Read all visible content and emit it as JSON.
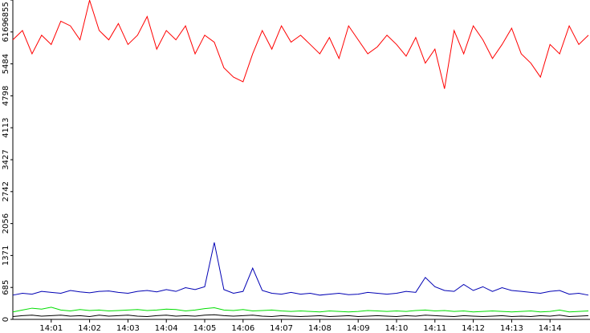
{
  "chart_data": {
    "type": "line",
    "x": [
      0,
      0.25,
      0.5,
      0.75,
      1,
      1.25,
      1.5,
      1.75,
      2,
      2.25,
      2.5,
      2.75,
      3,
      3.25,
      3.5,
      3.75,
      4,
      4.25,
      4.5,
      4.75,
      5,
      5.25,
      5.5,
      5.75,
      6,
      6.25,
      6.5,
      6.75,
      7,
      7.25,
      7.5,
      7.75,
      8,
      8.25,
      8.5,
      8.75,
      9,
      9.25,
      9.5,
      9.75,
      10,
      10.25,
      10.5,
      10.75,
      11,
      11.25,
      11.5,
      11.75,
      12,
      12.25,
      12.5,
      12.75,
      13,
      13.25,
      13.5,
      13.75,
      14,
      14.25,
      14.5,
      14.75,
      15
    ],
    "series": [
      {
        "color": "#ff0000",
        "values": [
          6000,
          6200,
          5700,
          6100,
          5900,
          6400,
          6300,
          6000,
          6850,
          6200,
          6000,
          6350,
          5900,
          6100,
          6500,
          5800,
          6200,
          6000,
          6300,
          5700,
          6100,
          5950,
          5400,
          5200,
          5100,
          5700,
          6200,
          5800,
          6300,
          5950,
          6100,
          5900,
          5700,
          6050,
          5600,
          6300,
          6000,
          5700,
          5850,
          6100,
          5900,
          5650,
          6050,
          5500,
          5800,
          4950,
          6200,
          5700,
          6300,
          6000,
          5600,
          5900,
          6250,
          5700,
          5500,
          5200,
          5900,
          5700,
          6300,
          5900,
          6100
        ]
      },
      {
        "color": "#0000b4",
        "values": [
          520,
          560,
          540,
          600,
          580,
          560,
          620,
          590,
          570,
          600,
          610,
          580,
          560,
          600,
          620,
          590,
          640,
          600,
          680,
          640,
          700,
          1650,
          640,
          560,
          600,
          1100,
          620,
          560,
          540,
          580,
          540,
          560,
          520,
          540,
          560,
          530,
          540,
          580,
          560,
          540,
          560,
          600,
          580,
          900,
          700,
          620,
          600,
          750,
          620,
          700,
          600,
          680,
          620,
          600,
          580,
          560,
          600,
          620,
          540,
          560,
          520
        ]
      },
      {
        "color": "#00dd00",
        "values": [
          160,
          200,
          240,
          220,
          260,
          200,
          180,
          210,
          190,
          200,
          180,
          190,
          200,
          210,
          190,
          200,
          220,
          210,
          180,
          200,
          230,
          250,
          200,
          190,
          210,
          180,
          190,
          200,
          180,
          170,
          180,
          170,
          160,
          180,
          170,
          160,
          170,
          190,
          180,
          170,
          180,
          170,
          190,
          200,
          180,
          190,
          170,
          180,
          160,
          170,
          180,
          170,
          160,
          170,
          180,
          160,
          170,
          200,
          160,
          170,
          180
        ]
      },
      {
        "color": "#000000",
        "values": [
          60,
          80,
          90,
          70,
          80,
          90,
          70,
          80,
          60,
          90,
          70,
          80,
          90,
          70,
          60,
          80,
          90,
          70,
          80,
          70,
          90,
          100,
          80,
          70,
          80,
          90,
          70,
          60,
          80,
          70,
          60,
          70,
          80,
          60,
          70,
          80,
          60,
          70,
          80,
          70,
          60,
          80,
          70,
          90,
          80,
          70,
          60,
          80,
          70,
          60,
          70,
          80,
          60,
          70,
          60,
          80,
          70,
          90,
          60,
          70,
          80
        ]
      }
    ],
    "xlim": [
      0,
      15
    ],
    "xticks": [
      {
        "value": 1,
        "label": "14:01"
      },
      {
        "value": 2,
        "label": "14:02"
      },
      {
        "value": 3,
        "label": "14:03"
      },
      {
        "value": 4,
        "label": "14:04"
      },
      {
        "value": 5,
        "label": "14:05"
      },
      {
        "value": 6,
        "label": "14:06"
      },
      {
        "value": 7,
        "label": "14:07"
      },
      {
        "value": 8,
        "label": "14:08"
      },
      {
        "value": 9,
        "label": "14:09"
      },
      {
        "value": 10,
        "label": "14:10"
      },
      {
        "value": 11,
        "label": "14:11"
      },
      {
        "value": 12,
        "label": "14:12"
      },
      {
        "value": 13,
        "label": "14:13"
      },
      {
        "value": 14,
        "label": "14:14"
      }
    ],
    "ylim": [
      0,
      6855
    ],
    "yticks": [
      0,
      685,
      1371,
      2056,
      2742,
      3427,
      4113,
      4798,
      5484,
      6169,
      6855
    ]
  }
}
